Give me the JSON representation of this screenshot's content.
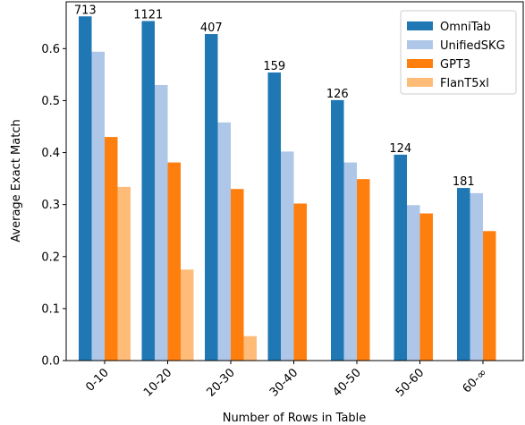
{
  "chart_data": {
    "type": "bar",
    "categories": [
      "0-10",
      "10-20",
      "20-30",
      "30-40",
      "40-50",
      "50-60",
      "60-∞"
    ],
    "series": [
      {
        "name": "OmniTab",
        "color": "#1f77b4",
        "values": [
          0.662,
          0.653,
          0.628,
          0.554,
          0.501,
          0.396,
          0.332
        ]
      },
      {
        "name": "UnifiedSKG",
        "color": "#aec7e8",
        "values": [
          0.594,
          0.53,
          0.458,
          0.402,
          0.381,
          0.299,
          0.322
        ]
      },
      {
        "name": "GPT3",
        "color": "#ff7f0e",
        "values": [
          0.43,
          0.381,
          0.33,
          0.302,
          0.349,
          0.283,
          0.249
        ]
      },
      {
        "name": "FlanT5xl",
        "color": "#ffbb78",
        "values": [
          0.334,
          0.175,
          0.047,
          null,
          null,
          null,
          null
        ]
      }
    ],
    "bar_annotations": [
      "713",
      "1121",
      "407",
      "159",
      "126",
      "124",
      "181"
    ],
    "xlabel": "Number of Rows in Table",
    "ylabel": "Average Exact Match",
    "ylim": [
      0.0,
      0.69
    ],
    "yticks": [
      "0.0",
      "0.1",
      "0.2",
      "0.3",
      "0.4",
      "0.5",
      "0.6"
    ],
    "legend_position": "top-right",
    "grid": false
  }
}
